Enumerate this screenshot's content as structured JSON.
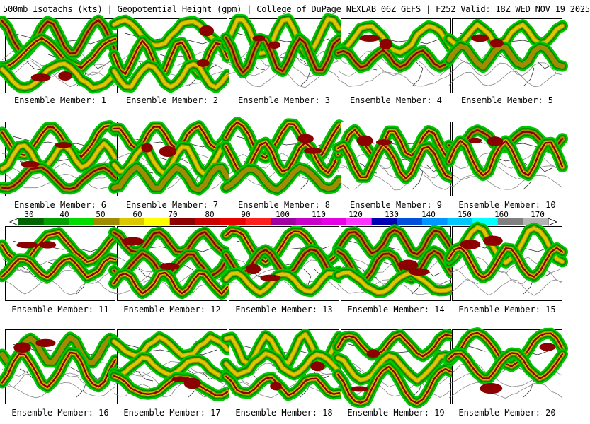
{
  "title": "500mb Isotachs (kts) | Geopotential Height (gpm) | College of DuPage NEXLAB   06Z GEFS | F252 Valid: 18Z WED NOV 19 2025",
  "members": [
    {
      "label": "Ensemble Member: 1"
    },
    {
      "label": "Ensemble Member: 2"
    },
    {
      "label": "Ensemble Member: 3"
    },
    {
      "label": "Ensemble Member: 4"
    },
    {
      "label": "Ensemble Member: 5"
    },
    {
      "label": "Ensemble Member: 6"
    },
    {
      "label": "Ensemble Member: 7"
    },
    {
      "label": "Ensemble Member: 8"
    },
    {
      "label": "Ensemble Member: 9"
    },
    {
      "label": "Ensemble Member: 10"
    },
    {
      "label": "Ensemble Member: 11"
    },
    {
      "label": "Ensemble Member: 12"
    },
    {
      "label": "Ensemble Member: 13"
    },
    {
      "label": "Ensemble Member: 14"
    },
    {
      "label": "Ensemble Member: 15"
    },
    {
      "label": "Ensemble Member: 16"
    },
    {
      "label": "Ensemble Member: 17"
    },
    {
      "label": "Ensemble Member: 18"
    },
    {
      "label": "Ensemble Member: 19"
    },
    {
      "label": "Ensemble Member: 20"
    }
  ],
  "colorbar": {
    "labels": [
      "30",
      "40",
      "50",
      "60",
      "70",
      "80",
      "90",
      "100",
      "110",
      "120",
      "130",
      "140",
      "150",
      "160",
      "170"
    ],
    "colors": [
      "#006400",
      "#00a000",
      "#00dc00",
      "#a08c00",
      "#dcc800",
      "#ffff00",
      "#8c0000",
      "#c80000",
      "#e60000",
      "#ff1e1e",
      "#a000a0",
      "#c800c8",
      "#e600e6",
      "#ff32ff",
      "#0000b4",
      "#0050dc",
      "#0096ff",
      "#00c8ff",
      "#00ffff",
      "#808080",
      "#b4b4b4"
    ]
  }
}
